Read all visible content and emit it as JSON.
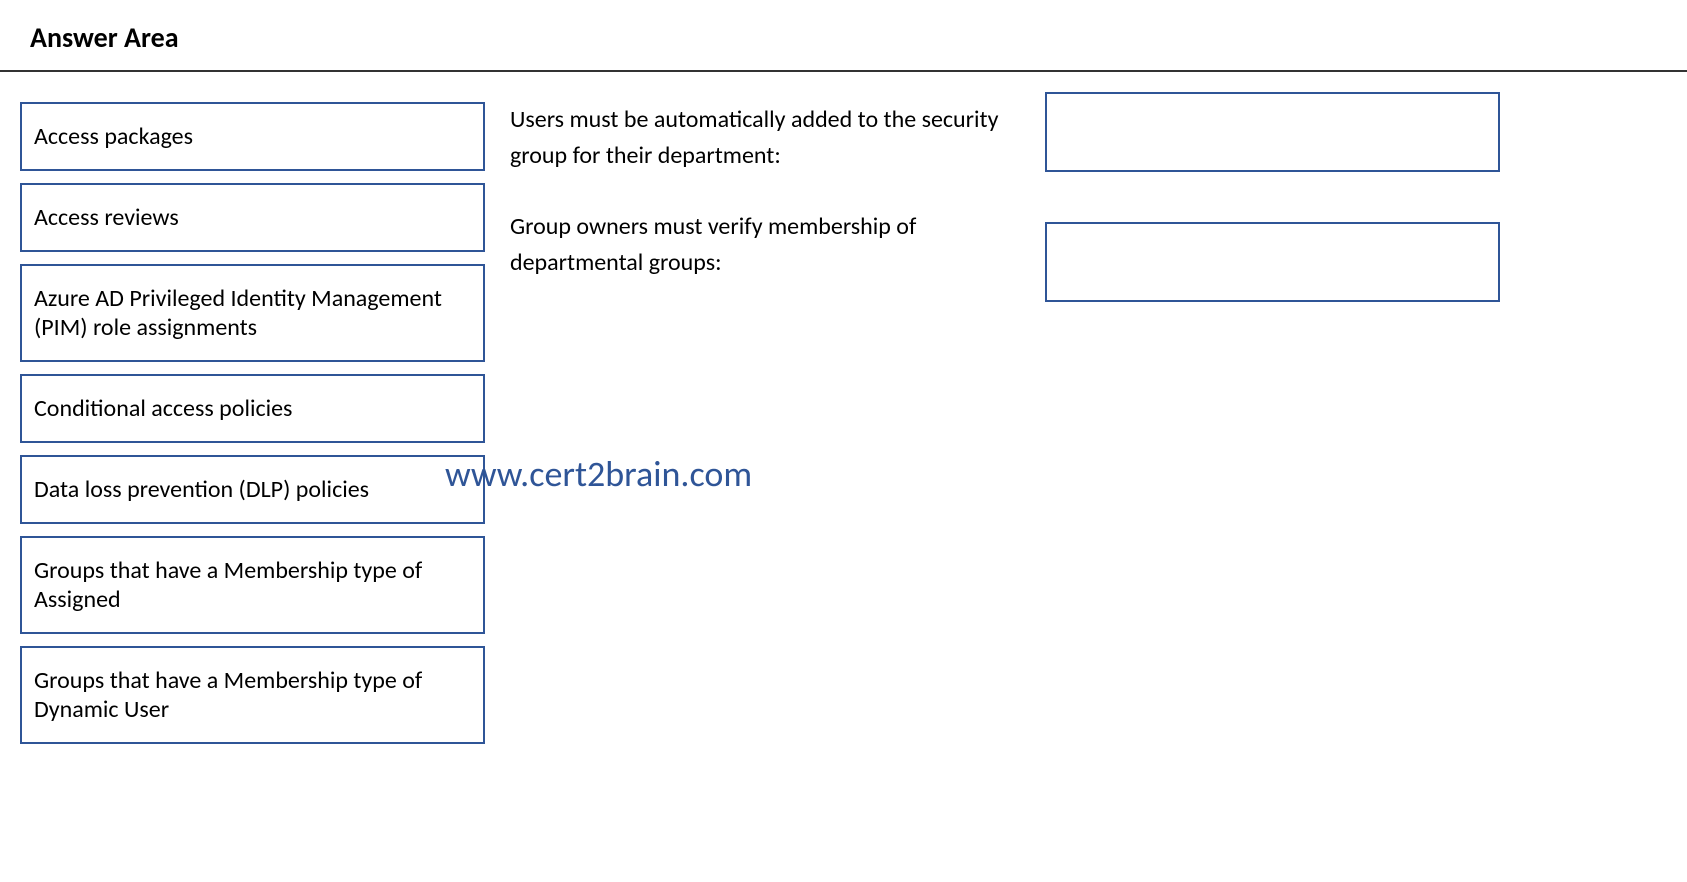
{
  "header": {
    "title": "Answer Area"
  },
  "options": [
    {
      "label": "Access packages"
    },
    {
      "label": "Access reviews"
    },
    {
      "label": "Azure AD Privileged Identity Management (PIM) role assignments"
    },
    {
      "label": "Conditional access policies"
    },
    {
      "label": "Data loss prevention (DLP) policies"
    },
    {
      "label": "Groups that have a Membership type of Assigned"
    },
    {
      "label": "Groups that have a Membership type of Dynamic User"
    }
  ],
  "requirements": [
    {
      "text": "Users must be automatically added to the security group for their department:"
    },
    {
      "text": "Group owners must verify membership of departmental groups:"
    }
  ],
  "watermark": "www.cert2brain.com",
  "styling": {
    "option_border_color": "#2f5597",
    "drop_border_color": "#2f5597",
    "watermark_color": "#2f5597",
    "divider_color": "#333333",
    "option_fontsize": 24,
    "requirement_fontsize": 24,
    "title_fontsize": 28,
    "watermark_fontsize": 36
  }
}
